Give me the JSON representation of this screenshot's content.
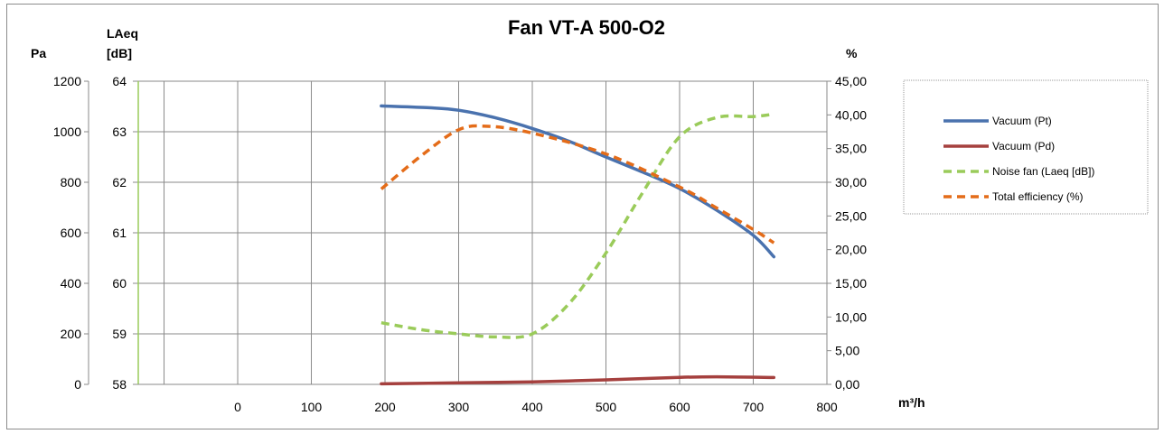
{
  "chart_data": {
    "type": "line",
    "title": "Fan VT-A 500-O2",
    "axes": {
      "y_left": {
        "label": "Pa",
        "range": [
          0,
          1200
        ],
        "ticks": [
          0,
          200,
          400,
          600,
          800,
          1000,
          1200
        ],
        "tick_labels": [
          "0",
          "200",
          "400",
          "600",
          "800",
          "1000",
          "1200"
        ]
      },
      "y_left2": {
        "label_line1": "LAeq",
        "label_line2": "[dB]",
        "range": [
          58,
          64
        ],
        "ticks": [
          58,
          59,
          60,
          61,
          62,
          63,
          64
        ],
        "tick_labels": [
          "58",
          "59",
          "60",
          "61",
          "62",
          "63",
          "64"
        ]
      },
      "y_right": {
        "label": "%",
        "range": [
          0,
          45
        ],
        "ticks": [
          0,
          5,
          10,
          15,
          20,
          25,
          30,
          35,
          40,
          45
        ],
        "tick_labels": [
          "0,00",
          "5,00",
          "10,00",
          "15,00",
          "20,00",
          "25,00",
          "30,00",
          "35,00",
          "40,00",
          "45,00"
        ]
      },
      "x": {
        "label": "m³/h",
        "range": [
          -135,
          800
        ],
        "ticks": [
          0,
          100,
          200,
          300,
          400,
          500,
          600,
          700,
          800
        ],
        "tick_labels": [
          "0",
          "100",
          "200",
          "300",
          "400",
          "500",
          "600",
          "700",
          "800"
        ],
        "grid_extra": [
          -135,
          -100
        ]
      }
    },
    "grid": true,
    "legend_position": "right",
    "series": [
      {
        "name": "Vacuum (Pt)",
        "axis": "y_left",
        "color": "#4a72ae",
        "dash": "solid",
        "points": [
          [
            195,
            1102
          ],
          [
            260,
            1095
          ],
          [
            300,
            1085
          ],
          [
            350,
            1055
          ],
          [
            400,
            1013
          ],
          [
            450,
            962
          ],
          [
            500,
            900
          ],
          [
            550,
            840
          ],
          [
            600,
            775
          ],
          [
            650,
            690
          ],
          [
            700,
            590
          ],
          [
            728,
            505
          ]
        ]
      },
      {
        "name": "Vacuum (Pd)",
        "axis": "y_left",
        "color": "#a5403e",
        "dash": "solid",
        "points": [
          [
            195,
            2
          ],
          [
            300,
            6
          ],
          [
            400,
            10
          ],
          [
            500,
            18
          ],
          [
            600,
            28
          ],
          [
            650,
            30
          ],
          [
            728,
            27
          ]
        ]
      },
      {
        "name": "Noise fan (Laeq [dB])",
        "axis": "y_left2",
        "color": "#9acb5a",
        "dash": "dashed",
        "points": [
          [
            195,
            59.22
          ],
          [
            250,
            59.08
          ],
          [
            300,
            59.0
          ],
          [
            350,
            58.94
          ],
          [
            400,
            59.0
          ],
          [
            450,
            59.6
          ],
          [
            500,
            60.6
          ],
          [
            550,
            61.8
          ],
          [
            600,
            62.9
          ],
          [
            650,
            63.28
          ],
          [
            700,
            63.3
          ],
          [
            728,
            63.35
          ]
        ]
      },
      {
        "name": "Total efficiency (%)",
        "axis": "y_right",
        "color": "#e46c19",
        "dash": "dashed",
        "points": [
          [
            195,
            29.0
          ],
          [
            250,
            34.0
          ],
          [
            300,
            37.8
          ],
          [
            340,
            38.3
          ],
          [
            400,
            37.3
          ],
          [
            500,
            34.2
          ],
          [
            600,
            29.3
          ],
          [
            650,
            26.2
          ],
          [
            700,
            23.0
          ],
          [
            728,
            21.0
          ]
        ]
      }
    ]
  }
}
